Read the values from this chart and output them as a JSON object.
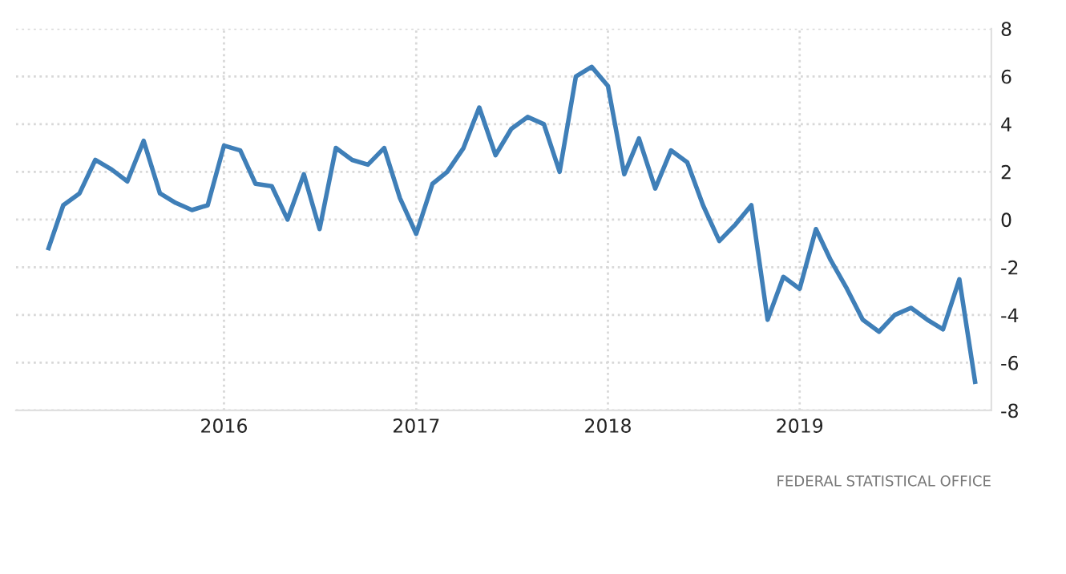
{
  "chart_data": {
    "type": "line",
    "x": [
      "2015-02",
      "2015-03",
      "2015-04",
      "2015-05",
      "2015-06",
      "2015-07",
      "2015-08",
      "2015-09",
      "2015-10",
      "2015-11",
      "2015-12",
      "2016-01",
      "2016-02",
      "2016-03",
      "2016-04",
      "2016-05",
      "2016-06",
      "2016-07",
      "2016-08",
      "2016-09",
      "2016-10",
      "2016-11",
      "2016-12",
      "2017-01",
      "2017-02",
      "2017-03",
      "2017-04",
      "2017-05",
      "2017-06",
      "2017-07",
      "2017-08",
      "2017-09",
      "2017-10",
      "2017-11",
      "2017-12",
      "2018-01",
      "2018-02",
      "2018-03",
      "2018-04",
      "2018-05",
      "2018-06",
      "2018-07",
      "2018-08",
      "2018-09",
      "2018-10",
      "2018-11",
      "2018-12",
      "2019-01",
      "2019-02",
      "2019-03",
      "2019-04",
      "2019-05",
      "2019-06",
      "2019-07",
      "2019-08",
      "2019-09",
      "2019-10",
      "2019-11",
      "2019-12"
    ],
    "series": [
      {
        "color": "#3f7fb8",
        "values": [
          -1.2,
          0.6,
          1.1,
          2.5,
          2.1,
          1.6,
          3.3,
          1.1,
          0.7,
          0.4,
          0.6,
          3.1,
          2.9,
          1.5,
          1.4,
          0.0,
          1.9,
          -0.4,
          3.0,
          2.5,
          2.3,
          3.0,
          0.9,
          -0.6,
          1.5,
          2.0,
          3.0,
          4.7,
          2.7,
          3.8,
          4.3,
          4.0,
          2.0,
          6.0,
          6.4,
          5.6,
          1.9,
          3.4,
          1.3,
          2.9,
          2.4,
          0.6,
          -0.9,
          -0.2,
          0.6,
          -4.2,
          -2.4,
          -2.9,
          -0.4,
          -1.7,
          -2.9,
          -4.2,
          -4.7,
          -4.0,
          -3.7,
          -4.2,
          -4.6,
          -2.5,
          -6.8
        ]
      }
    ],
    "xlim": [
      "2014-12",
      "2020-01"
    ],
    "xticks": [
      {
        "value": "2016-01-01",
        "label": "2016"
      },
      {
        "value": "2017-01-01",
        "label": "2017"
      },
      {
        "value": "2018-01-01",
        "label": "2018"
      },
      {
        "value": "2019-01-01",
        "label": "2019"
      }
    ],
    "ylim": [
      -8,
      8
    ],
    "yticks": [
      -8,
      -6,
      -4,
      -2,
      0,
      2,
      4,
      6,
      8
    ],
    "grid": true,
    "line_style": "solid",
    "marker": "none",
    "annotations": [
      "FEDERAL STATISTICAL OFFICE"
    ]
  }
}
